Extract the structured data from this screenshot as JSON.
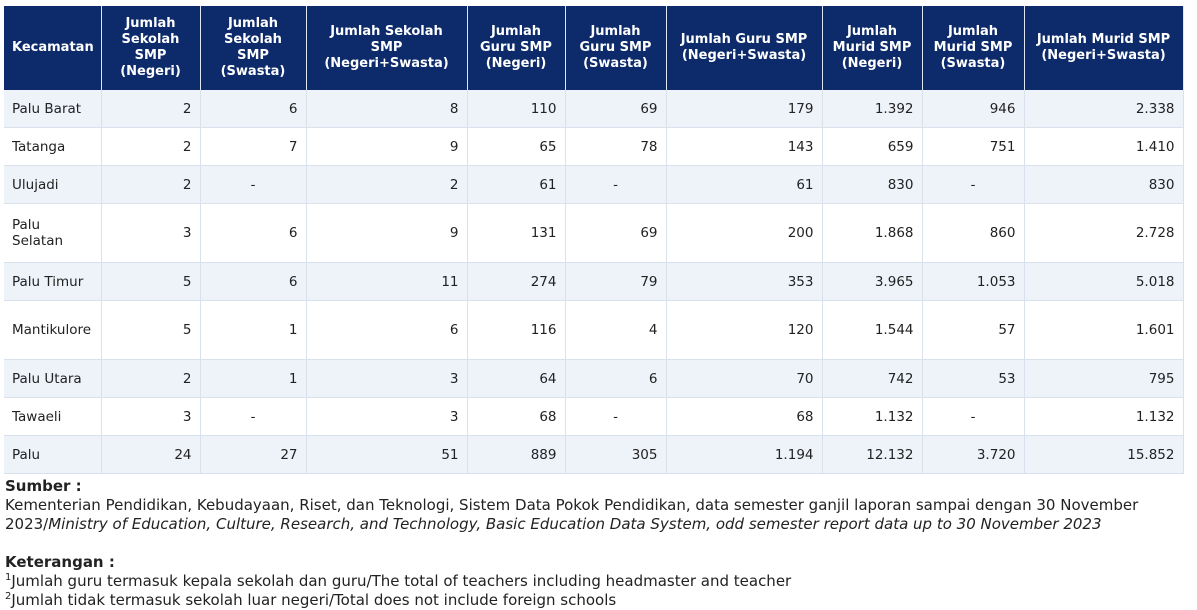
{
  "table": {
    "header": [
      "Kecamatan",
      "Jumlah Sekolah SMP (Negeri)",
      "Jumlah Sekolah SMP (Swasta)",
      "Jumlah Sekolah SMP (Negeri+Swasta)",
      "Jumlah Guru SMP (Negeri)",
      "Jumlah Guru SMP (Swasta)",
      "Jumlah Guru SMP (Negeri+Swasta)",
      "Jumlah Murid SMP (Negeri)",
      "Jumlah Murid SMP (Swasta)",
      "Jumlah Murid SMP (Negeri+Swasta)"
    ],
    "rows": [
      [
        "Palu Barat",
        "2",
        "6",
        "8",
        "110",
        "69",
        "179",
        "1.392",
        "946",
        "2.338"
      ],
      [
        "Tatanga",
        "2",
        "7",
        "9",
        "65",
        "78",
        "143",
        "659",
        "751",
        "1.410"
      ],
      [
        "Ulujadi",
        "2",
        "-",
        "2",
        "61",
        "-",
        "61",
        "830",
        "-",
        "830"
      ],
      [
        "Palu Selatan",
        "3",
        "6",
        "9",
        "131",
        "69",
        "200",
        "1.868",
        "860",
        "2.728"
      ],
      [
        "Palu Timur",
        "5",
        "6",
        "11",
        "274",
        "79",
        "353",
        "3.965",
        "1.053",
        "5.018"
      ],
      [
        "Mantikulore",
        "5",
        "1",
        "6",
        "116",
        "4",
        "120",
        "1.544",
        "57",
        "1.601"
      ],
      [
        "Palu Utara",
        "2",
        "1",
        "3",
        "64",
        "6",
        "70",
        "742",
        "53",
        "795"
      ],
      [
        "Tawaeli",
        "3",
        "-",
        "3",
        "68",
        "-",
        "68",
        "1.132",
        "-",
        "1.132"
      ],
      [
        "Palu",
        "24",
        "27",
        "51",
        "889",
        "305",
        "1.194",
        "12.132",
        "3.720",
        "15.852"
      ]
    ]
  },
  "source": {
    "label": "Sumber :",
    "text": "Kementerian Pendidikan, Kebudayaan, Riset, dan Teknologi, Sistem Data Pokok Pendidikan, data semester ganjil laporan sampai dengan 30 November 2023/",
    "text_en": "Ministry of Education, Culture, Research, and Technology, Basic Education Data System, odd semester report data up to 30 November 2023"
  },
  "notes": {
    "label": "Keterangan :",
    "items": [
      {
        "mark": "1",
        "text": "Jumlah guru termasuk kepala sekolah dan guru/The total of teachers including headmaster and teacher"
      },
      {
        "mark": "2",
        "text": "Jumlah tidak termasuk sekolah luar negeri/Total does not include foreign schools"
      }
    ]
  }
}
